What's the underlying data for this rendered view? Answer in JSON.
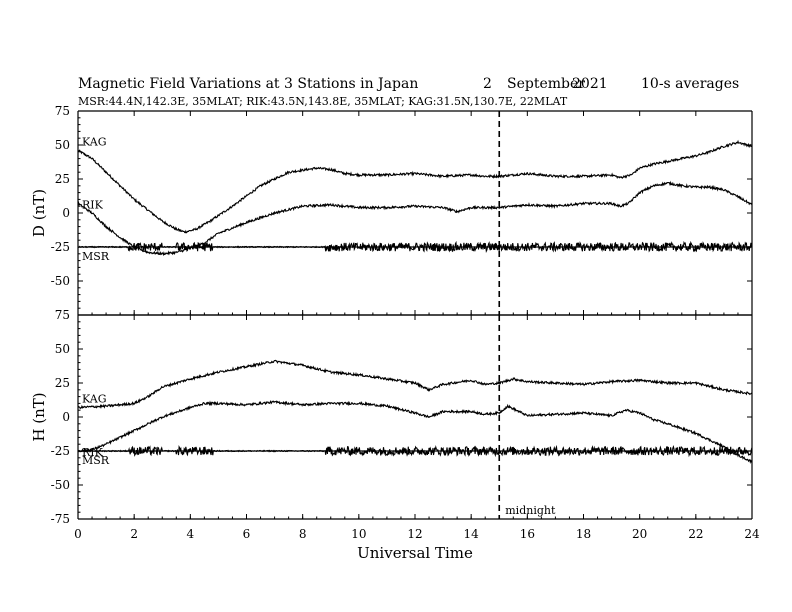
{
  "chart_data": {
    "type": "line",
    "title": "Magnetic Field Variations at 3 Stations in Japan",
    "date_day": "2",
    "date_month": "September",
    "date_year": "2021",
    "averaging": "10-s averages",
    "subtitle": "MSR:44.4N,142.3E, 35MLAT;  RIK:43.5N,143.8E, 35MLAT;  KAG:31.5N,130.7E, 22MLAT",
    "xlabel": "Universal Time",
    "xlim": [
      0,
      24
    ],
    "xticks": [
      0,
      2,
      4,
      6,
      8,
      10,
      12,
      14,
      16,
      18,
      20,
      22,
      24
    ],
    "midnight_ut": 15,
    "midnight_label": "midnight",
    "panels": [
      {
        "ylabel": "D (nT)",
        "ylim": [
          -75,
          75
        ],
        "yticks": [
          -75,
          -50,
          -25,
          0,
          25,
          50,
          75
        ],
        "baseline": -25,
        "series": [
          {
            "name": "KAG",
            "x": [
              0,
              0.5,
              1,
              1.5,
              2,
              2.5,
              3,
              3.5,
              3.8,
              4.2,
              4.7,
              5.5,
              6.5,
              7.5,
              8.5,
              9,
              9.5,
              10,
              11,
              12,
              13,
              14,
              14.5,
              15,
              16,
              17,
              18,
              19,
              19.3,
              19.7,
              20,
              20.5,
              21,
              21.5,
              22,
              22.5,
              23,
              23.5,
              24
            ],
            "values": [
              46,
              40,
              30,
              20,
              10,
              2,
              -6,
              -12,
              -14,
              -12,
              -6,
              5,
              20,
              30,
              33,
              32,
              29,
              28,
              28,
              29,
              27,
              28,
              27,
              27,
              29,
              27,
              27,
              28,
              26,
              28,
              33,
              36,
              38,
              40,
              42,
              45,
              49,
              52,
              49
            ]
          },
          {
            "name": "RIK",
            "x": [
              0,
              0.5,
              1,
              1.5,
              2,
              2.5,
              3,
              3.5,
              4,
              4.5,
              5,
              6,
              7,
              8,
              9,
              10,
              11,
              12,
              13,
              13.5,
              14,
              15,
              16,
              17,
              18,
              19,
              19.3,
              19.6,
              20,
              20.5,
              21,
              21.5,
              22,
              22.5,
              23,
              23.5,
              24
            ],
            "values": [
              7,
              0,
              -10,
              -18,
              -25,
              -29,
              -30,
              -29,
              -26,
              -22,
              -15,
              -7,
              0,
              5,
              6,
              4,
              4,
              5,
              4,
              1,
              4,
              4,
              6,
              5,
              7,
              7,
              5,
              7,
              15,
              20,
              22,
              20,
              19,
              19,
              17,
              12,
              6
            ]
          },
          {
            "name": "MSR",
            "x": [
              0,
              2,
              4,
              6,
              8,
              10,
              12,
              14,
              16,
              18,
              20,
              22,
              24
            ],
            "values": [
              -25,
              -25,
              -25,
              -25,
              -25,
              -25,
              -25,
              -25,
              -25,
              -25,
              -25,
              -25,
              -25
            ]
          }
        ]
      },
      {
        "ylabel": "H (nT)",
        "ylim": [
          -75,
          75
        ],
        "yticks": [
          -75,
          -50,
          -25,
          0,
          25,
          50,
          75
        ],
        "baseline": -25,
        "series": [
          {
            "name": "KAG",
            "x": [
              0,
              1,
              2,
              2.5,
              3,
              4,
              5,
              6,
              7,
              8,
              9,
              10,
              11,
              12,
              12.5,
              13,
              14,
              14.5,
              15,
              15.5,
              16,
              17,
              18,
              19,
              20,
              21,
              22,
              23,
              24
            ],
            "values": [
              7,
              8,
              10,
              15,
              22,
              28,
              33,
              37,
              41,
              38,
              33,
              31,
              28,
              25,
              20,
              24,
              27,
              24,
              25,
              28,
              26,
              25,
              24,
              26,
              27,
              25,
              25,
              20,
              17
            ]
          },
          {
            "name": "RIK",
            "x": [
              0,
              0.5,
              1,
              1.5,
              2,
              3,
              4,
              4.5,
              5,
              6,
              7,
              8,
              9,
              10,
              11,
              12,
              12.5,
              13,
              14,
              14.5,
              15,
              15.3,
              15.6,
              16,
              17,
              18,
              19,
              19.5,
              20,
              20.5,
              21,
              22,
              23,
              23.5,
              24
            ],
            "values": [
              -25,
              -24,
              -20,
              -15,
              -10,
              0,
              7,
              10,
              10,
              9,
              11,
              9,
              10,
              10,
              8,
              3,
              0,
              4,
              4,
              2,
              3,
              8,
              5,
              1,
              2,
              3,
              1,
              5,
              3,
              -2,
              -5,
              -12,
              -22,
              -28,
              -33
            ]
          },
          {
            "name": "MSR",
            "x": [
              0,
              2,
              4,
              6,
              8,
              10,
              12,
              14,
              16,
              18,
              20,
              22,
              24
            ],
            "values": [
              -25,
              -25,
              -25,
              -25,
              -25,
              -25,
              -25,
              -25,
              -25,
              -25,
              -25,
              -25,
              -25
            ]
          }
        ]
      }
    ]
  }
}
